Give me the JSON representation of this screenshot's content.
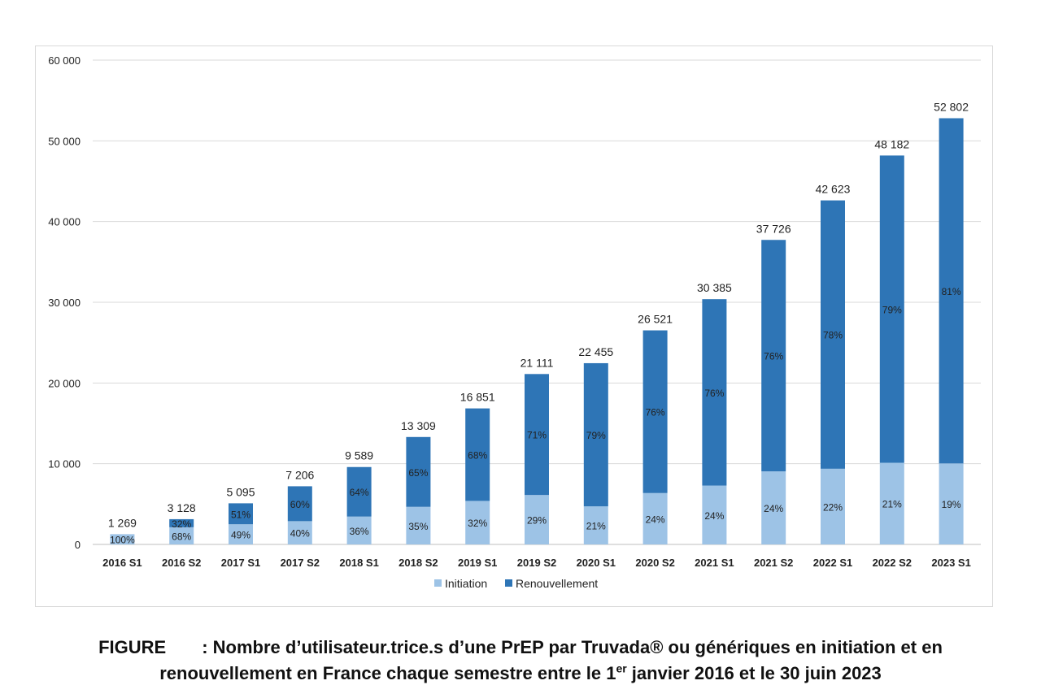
{
  "chart_data": {
    "type": "bar",
    "stacked": true,
    "categories": [
      "2016 S1",
      "2016 S2",
      "2017 S1",
      "2017 S2",
      "2018 S1",
      "2018 S2",
      "2019 S1",
      "2019 S2",
      "2020 S1",
      "2020 S2",
      "2021 S1",
      "2021 S2",
      "2022 S1",
      "2022 S2",
      "2023 S1"
    ],
    "totals": [
      1269,
      3128,
      5095,
      7206,
      9589,
      13309,
      16851,
      21111,
      22455,
      26521,
      30385,
      37726,
      42623,
      48182,
      52802
    ],
    "total_labels": [
      "1 269",
      "3 128",
      "5 095",
      "7 206",
      "9 589",
      "13 309",
      "16 851",
      "21 111",
      "22 455",
      "26 521",
      "30 385",
      "37 726",
      "42 623",
      "48 182",
      "52 802"
    ],
    "series": [
      {
        "name": "Initiation",
        "color": "#9dc3e6",
        "pct": [
          100,
          68,
          49,
          40,
          36,
          35,
          32,
          29,
          21,
          24,
          24,
          24,
          22,
          21,
          19
        ],
        "pct_labels": [
          "100%",
          "68%",
          "49%",
          "40%",
          "36%",
          "35%",
          "32%",
          "29%",
          "21%",
          "24%",
          "24%",
          "24%",
          "22%",
          "21%",
          "19%"
        ]
      },
      {
        "name": "Renouvellement",
        "color": "#2e75b6",
        "pct": [
          0,
          32,
          51,
          60,
          64,
          65,
          68,
          71,
          79,
          76,
          76,
          76,
          78,
          79,
          81
        ],
        "pct_labels": [
          "",
          "32%",
          "51%",
          "60%",
          "64%",
          "65%",
          "68%",
          "71%",
          "79%",
          "76%",
          "76%",
          "76%",
          "78%",
          "79%",
          "81%"
        ]
      }
    ],
    "ylim": [
      0,
      60000
    ],
    "yticks": [
      0,
      10000,
      20000,
      30000,
      40000,
      50000,
      60000
    ],
    "ytick_labels": [
      "0",
      "10 000",
      "20 000",
      "30 000",
      "40 000",
      "50 000",
      "60 000"
    ],
    "grid": true,
    "legend_position": "bottom"
  },
  "caption": {
    "line1": "FIGURE  : Nombre d’utilisateur.trice.s d’une PrEP par Truvada® ou génériques en initiation et en",
    "line2_before": "renouvellement en France chaque semestre entre le 1",
    "line2_sup": "er",
    "line2_after": " janvier 2016 et le 30 juin 2023"
  }
}
